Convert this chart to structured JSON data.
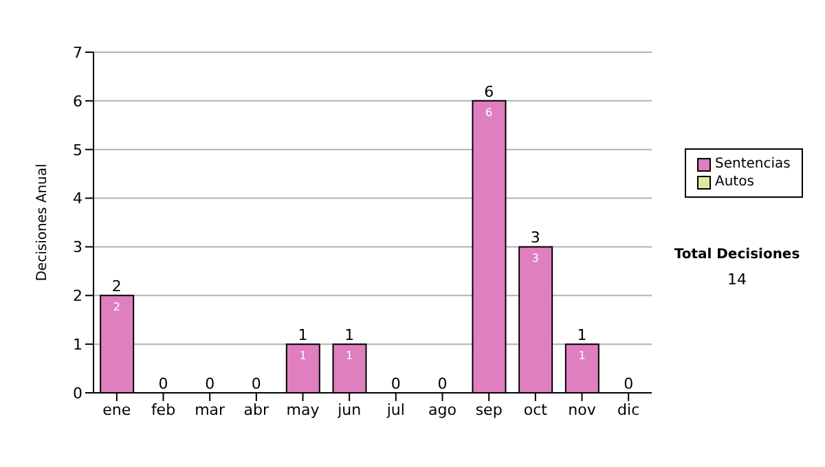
{
  "chart_data": {
    "type": "bar",
    "ylabel": "Decisiones Anual",
    "categories": [
      "ene",
      "feb",
      "mar",
      "abr",
      "may",
      "jun",
      "jul",
      "ago",
      "sep",
      "oct",
      "nov",
      "dic"
    ],
    "series": [
      {
        "name": "Sentencias",
        "color": "#e07fc0",
        "values": [
          2,
          0,
          0,
          0,
          1,
          1,
          0,
          0,
          6,
          3,
          1,
          0
        ],
        "value_labels": [
          "2",
          null,
          null,
          null,
          "1",
          "1",
          null,
          null,
          "6",
          "3",
          "1",
          null
        ]
      },
      {
        "name": "Autos",
        "color": "#d8eca0",
        "values": [
          0,
          0,
          0,
          0,
          0,
          0,
          0,
          0,
          0,
          0,
          0,
          0
        ]
      }
    ],
    "stacked": true,
    "totals": [
      "2",
      "0",
      "0",
      "0",
      "1",
      "1",
      "0",
      "0",
      "6",
      "3",
      "1",
      "0"
    ],
    "ylim": [
      0,
      7
    ],
    "yticks": [
      0,
      1,
      2,
      3,
      4,
      5,
      6,
      7
    ],
    "grid": "y",
    "legend": "right",
    "annotations": [
      "Total Decisiones",
      "14"
    ]
  }
}
